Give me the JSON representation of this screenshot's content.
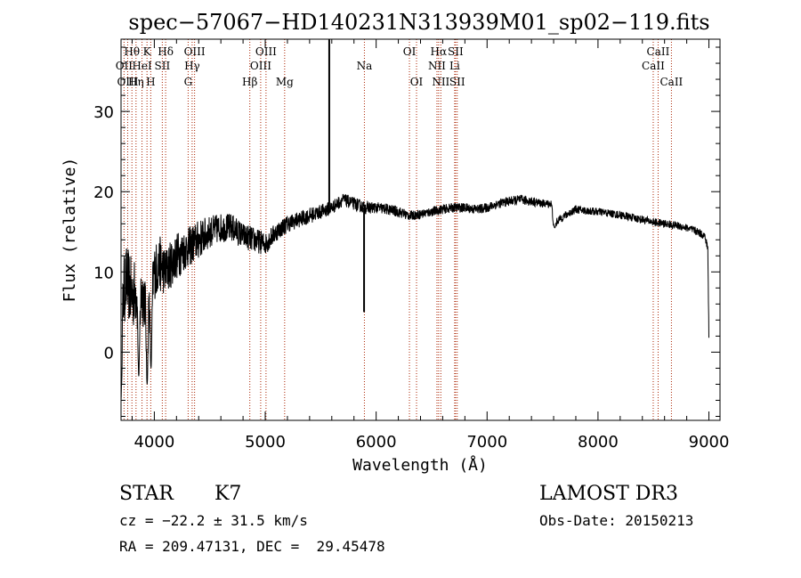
{
  "colors": {
    "ink": "#000000",
    "line_marker": "#aa2200",
    "background": "#ffffff"
  },
  "footer": {
    "object_type": "STAR",
    "subclass": "K7",
    "survey": "LAMOST DR3",
    "redshift_line": "cz = −22.2 ± 31.5 km/s",
    "obs_date": "Obs-Date: 20150213",
    "coords": "RA = 209.47131, DEC =  29.45478"
  },
  "chart_data": {
    "type": "line",
    "title": "spec−57067−HD140231N313939M01_sp02−119.fits",
    "xlabel": "Wavelength (Å)",
    "ylabel": "Flux (relative)",
    "xlim": [
      3700,
      9100
    ],
    "ylim": [
      -8.5,
      39
    ],
    "x_ticks": [
      4000,
      5000,
      6000,
      7000,
      8000,
      9000
    ],
    "x_tick_labels": [
      "4000",
      "5000",
      "6000",
      "7000",
      "8000",
      "9000"
    ],
    "y_ticks": [
      0,
      10,
      20,
      30
    ],
    "y_tick_labels": [
      "0",
      "10",
      "20",
      "30"
    ],
    "x_minor_step": 200,
    "y_minor_step": 2,
    "grid": false,
    "continuum": {
      "x": [
        3700,
        3750,
        3800,
        3850,
        3900,
        3950,
        4000,
        4050,
        4100,
        4150,
        4200,
        4300,
        4400,
        4500,
        4600,
        4700,
        4800,
        4900,
        5000,
        5100,
        5200,
        5300,
        5400,
        5500,
        5600,
        5700,
        5800,
        5900,
        6000,
        6100,
        6200,
        6300,
        6400,
        6500,
        6600,
        6700,
        6800,
        6900,
        7000,
        7100,
        7200,
        7300,
        7400,
        7500,
        7550,
        7580,
        7600,
        7650,
        7700,
        7800,
        7900,
        8000,
        8100,
        8200,
        8300,
        8400,
        8500,
        8600,
        8700,
        8800,
        8900,
        8960,
        8990,
        9000
      ],
      "y": [
        6,
        9,
        7,
        8,
        7,
        8,
        10,
        11,
        10,
        11,
        12,
        13,
        14,
        15,
        15.5,
        15.5,
        14.5,
        14,
        13.5,
        15,
        16,
        16.5,
        17,
        17.5,
        18,
        19,
        18.5,
        18,
        18,
        17.8,
        17.5,
        17,
        17.2,
        17.5,
        17.8,
        18,
        18,
        17.8,
        18,
        18.5,
        18.8,
        19,
        18.8,
        18.5,
        18.5,
        18.5,
        16,
        16.5,
        17,
        17.8,
        17.6,
        17.5,
        17.3,
        17.1,
        16.8,
        16.5,
        16.2,
        16,
        15.8,
        15.5,
        15,
        14.5,
        13,
        2
      ],
      "noise": [
        4.5,
        4.5,
        4.5,
        4,
        4,
        4,
        3.5,
        3.5,
        3,
        3,
        3,
        2.5,
        2.5,
        2,
        1.8,
        1.8,
        1.6,
        1.6,
        1.4,
        1.2,
        1.1,
        1,
        1,
        0.9,
        0.9,
        0.8,
        0.8,
        0.8,
        0.7,
        0.7,
        0.7,
        0.6,
        0.6,
        0.6,
        0.6,
        0.6,
        0.6,
        0.6,
        0.6,
        0.6,
        0.6,
        0.6,
        0.6,
        0.5,
        0.5,
        0.5,
        0.5,
        0.5,
        0.5,
        0.5,
        0.5,
        0.5,
        0.5,
        0.5,
        0.5,
        0.5,
        0.5,
        0.5,
        0.5,
        0.5,
        0.5,
        0.5,
        0.5,
        0.5
      ]
    },
    "spikes": [
      {
        "x": 5577,
        "y": 39
      },
      {
        "x": 5891,
        "y": 5
      }
    ],
    "features": [
      {
        "x": 3700,
        "y": -6
      },
      {
        "x": 3860,
        "y": -3
      },
      {
        "x": 3935,
        "y": -4
      },
      {
        "x": 3970,
        "y": -2
      },
      {
        "x": 7610,
        "y": 15.5
      }
    ],
    "line_markers": [
      {
        "label": "Hθ",
        "x": 3798,
        "row": 1
      },
      {
        "label": "OII",
        "x": 3727,
        "row": 2
      },
      {
        "label": "OIII",
        "x": 3760,
        "row": 3
      },
      {
        "label": "Hη",
        "x": 3835,
        "row": 3
      },
      {
        "label": "HeI",
        "x": 3889,
        "row": 2
      },
      {
        "label": "K",
        "x": 3934,
        "row": 1
      },
      {
        "label": "H",
        "x": 3968,
        "row": 3
      },
      {
        "label": "SII",
        "x": 4072,
        "row": 2
      },
      {
        "label": "Hδ",
        "x": 4102,
        "row": 1
      },
      {
        "label": "OIII",
        "x": 4363,
        "row": 1
      },
      {
        "label": "Hγ",
        "x": 4341,
        "row": 2
      },
      {
        "label": "G",
        "x": 4305,
        "row": 3
      },
      {
        "label": "Hβ",
        "x": 4861,
        "row": 3
      },
      {
        "label": "OIII",
        "x": 5007,
        "row": 1
      },
      {
        "label": "OIII",
        "x": 4959,
        "row": 2
      },
      {
        "label": "Mg",
        "x": 5175,
        "row": 3
      },
      {
        "label": "Na",
        "x": 5894,
        "row": 2
      },
      {
        "label": "OI",
        "x": 6300,
        "row": 1
      },
      {
        "label": "OI",
        "x": 6364,
        "row": 3
      },
      {
        "label": "Hα",
        "x": 6563,
        "row": 1
      },
      {
        "label": "NII",
        "x": 6548,
        "row": 2
      },
      {
        "label": "NII",
        "x": 6583,
        "row": 3
      },
      {
        "label": "SII",
        "x": 6716,
        "row": 1
      },
      {
        "label": "Li",
        "x": 6708,
        "row": 2
      },
      {
        "label": "SII",
        "x": 6731,
        "row": 3
      },
      {
        "label": "CaII",
        "x": 8542,
        "row": 1
      },
      {
        "label": "CaII",
        "x": 8498,
        "row": 2
      },
      {
        "label": "CaII",
        "x": 8662,
        "row": 3
      }
    ]
  }
}
